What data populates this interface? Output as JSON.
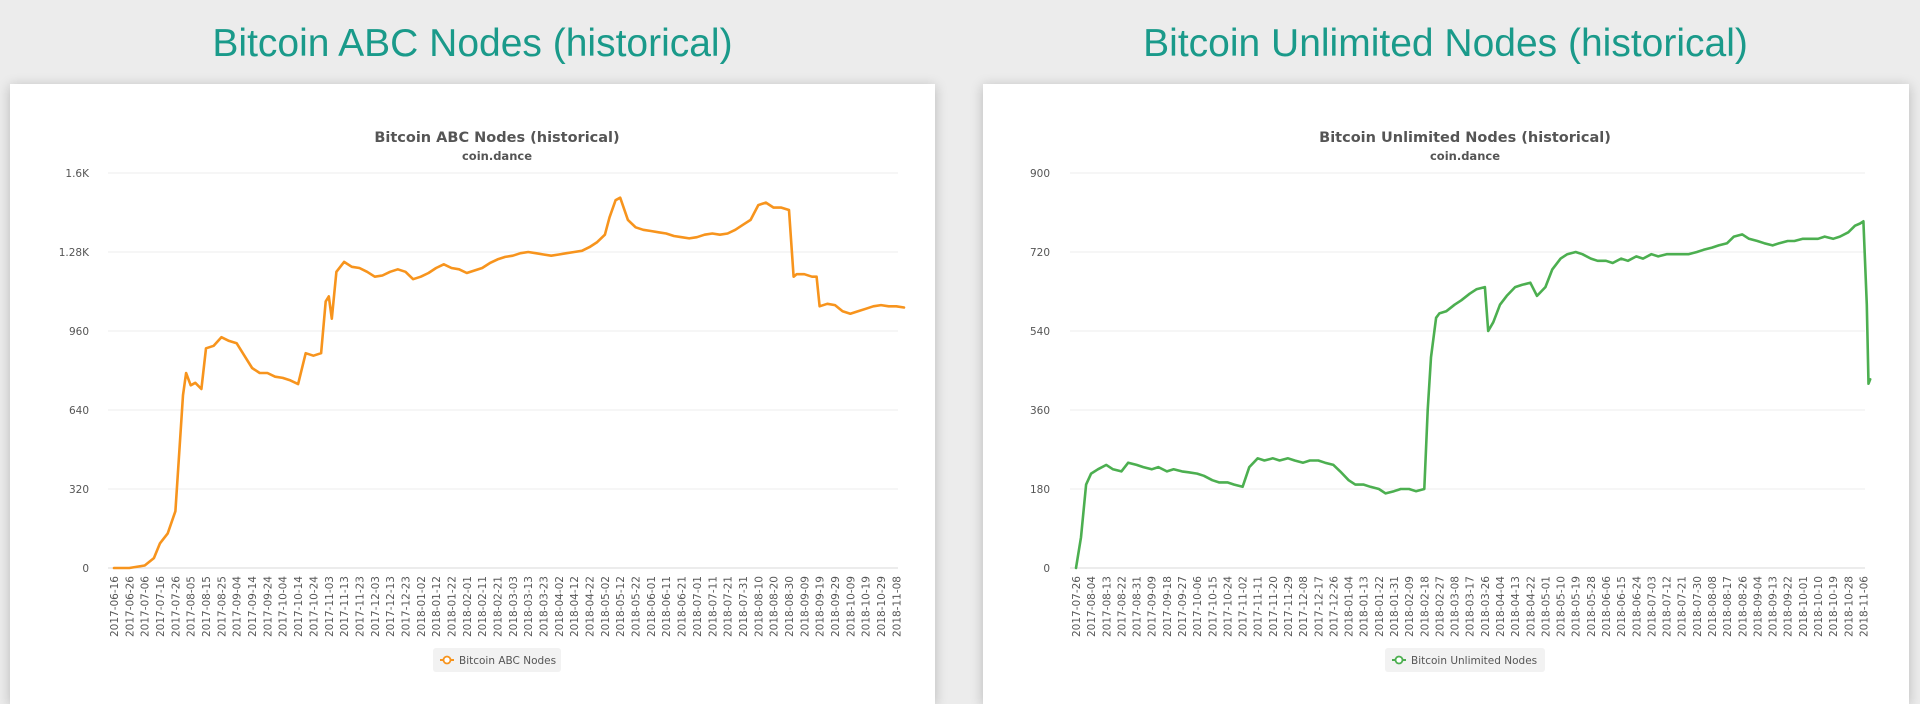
{
  "page": {
    "left_heading": "Bitcoin ABC Nodes (historical)",
    "right_heading": "Bitcoin Unlimited Nodes (historical)"
  },
  "chart_data": [
    {
      "type": "line",
      "title": "Bitcoin ABC Nodes (historical)",
      "subtitle": "coin.dance",
      "xlabel": "",
      "ylabel": "",
      "ylim": [
        0,
        1600
      ],
      "yticks": [
        0,
        320,
        640,
        960,
        1280,
        1600
      ],
      "ytick_labels": [
        "0",
        "320",
        "640",
        "960",
        "1.28K",
        "1.6K"
      ],
      "grid": true,
      "legend_position": "bottom-center",
      "color": "#f7941d",
      "x_tick_labels": [
        "2017-06-16",
        "2017-06-26",
        "2017-07-06",
        "2017-07-16",
        "2017-07-26",
        "2017-08-05",
        "2017-08-15",
        "2017-08-25",
        "2017-09-04",
        "2017-09-14",
        "2017-09-24",
        "2017-10-04",
        "2017-10-14",
        "2017-10-24",
        "2017-11-03",
        "2017-11-13",
        "2017-11-23",
        "2017-12-03",
        "2017-12-13",
        "2017-12-23",
        "2018-01-02",
        "2018-01-12",
        "2018-01-22",
        "2018-02-01",
        "2018-02-11",
        "2018-02-21",
        "2018-03-03",
        "2018-03-13",
        "2018-03-23",
        "2018-04-02",
        "2018-04-12",
        "2018-04-22",
        "2018-05-02",
        "2018-05-12",
        "2018-05-22",
        "2018-06-01",
        "2018-06-11",
        "2018-06-21",
        "2018-07-01",
        "2018-07-11",
        "2018-07-21",
        "2018-07-31",
        "2018-08-10",
        "2018-08-20",
        "2018-08-30",
        "2018-09-09",
        "2018-09-19",
        "2018-09-29",
        "2018-10-09",
        "2018-10-19",
        "2018-10-29",
        "2018-11-08"
      ],
      "series": [
        {
          "name": "Bitcoin ABC Nodes",
          "x": [
            "2017-06-16",
            "2017-06-26",
            "2017-07-06",
            "2017-07-12",
            "2017-07-16",
            "2017-07-21",
            "2017-07-26",
            "2017-07-31",
            "2017-08-02",
            "2017-08-05",
            "2017-08-08",
            "2017-08-12",
            "2017-08-15",
            "2017-08-20",
            "2017-08-25",
            "2017-08-30",
            "2017-09-04",
            "2017-09-09",
            "2017-09-14",
            "2017-09-19",
            "2017-09-24",
            "2017-09-29",
            "2017-10-04",
            "2017-10-09",
            "2017-10-14",
            "2017-10-19",
            "2017-10-24",
            "2017-10-29",
            "2017-11-01",
            "2017-11-03",
            "2017-11-05",
            "2017-11-08",
            "2017-11-13",
            "2017-11-18",
            "2017-11-23",
            "2017-11-28",
            "2017-12-03",
            "2017-12-08",
            "2017-12-13",
            "2017-12-18",
            "2017-12-23",
            "2017-12-28",
            "2018-01-02",
            "2018-01-07",
            "2018-01-12",
            "2018-01-17",
            "2018-01-22",
            "2018-01-27",
            "2018-02-01",
            "2018-02-06",
            "2018-02-11",
            "2018-02-16",
            "2018-02-21",
            "2018-02-26",
            "2018-03-03",
            "2018-03-08",
            "2018-03-13",
            "2018-03-18",
            "2018-03-23",
            "2018-03-28",
            "2018-04-02",
            "2018-04-07",
            "2018-04-12",
            "2018-04-17",
            "2018-04-22",
            "2018-04-27",
            "2018-05-02",
            "2018-05-05",
            "2018-05-09",
            "2018-05-12",
            "2018-05-17",
            "2018-05-22",
            "2018-05-27",
            "2018-06-01",
            "2018-06-06",
            "2018-06-11",
            "2018-06-16",
            "2018-06-21",
            "2018-06-26",
            "2018-07-01",
            "2018-07-06",
            "2018-07-11",
            "2018-07-16",
            "2018-07-21",
            "2018-07-26",
            "2018-07-31",
            "2018-08-05",
            "2018-08-10",
            "2018-08-15",
            "2018-08-20",
            "2018-08-25",
            "2018-08-30",
            "2018-09-02",
            "2018-09-04",
            "2018-09-09",
            "2018-09-14",
            "2018-09-17",
            "2018-09-19",
            "2018-09-24",
            "2018-09-29",
            "2018-10-04",
            "2018-10-09",
            "2018-10-14",
            "2018-10-19",
            "2018-10-24",
            "2018-10-29",
            "2018-11-03",
            "2018-11-08",
            "2018-11-13"
          ],
          "values": [
            0,
            0,
            10,
            40,
            100,
            140,
            230,
            700,
            790,
            740,
            750,
            725,
            890,
            900,
            935,
            920,
            910,
            860,
            810,
            790,
            790,
            775,
            770,
            760,
            745,
            870,
            860,
            870,
            1080,
            1100,
            1010,
            1200,
            1240,
            1220,
            1215,
            1200,
            1180,
            1185,
            1200,
            1210,
            1200,
            1170,
            1180,
            1195,
            1215,
            1230,
            1215,
            1210,
            1195,
            1205,
            1215,
            1235,
            1250,
            1260,
            1265,
            1275,
            1280,
            1275,
            1270,
            1265,
            1270,
            1275,
            1280,
            1285,
            1300,
            1320,
            1350,
            1420,
            1490,
            1500,
            1410,
            1380,
            1370,
            1365,
            1360,
            1355,
            1345,
            1340,
            1335,
            1340,
            1350,
            1355,
            1350,
            1355,
            1370,
            1390,
            1410,
            1470,
            1480,
            1460,
            1460,
            1450,
            1180,
            1190,
            1190,
            1180,
            1180,
            1060,
            1070,
            1065,
            1040,
            1030,
            1040,
            1050,
            1060,
            1065,
            1060,
            1060,
            1055
          ]
        }
      ]
    },
    {
      "type": "line",
      "title": "Bitcoin Unlimited Nodes (historical)",
      "subtitle": "coin.dance",
      "xlabel": "",
      "ylabel": "",
      "ylim": [
        0,
        900
      ],
      "yticks": [
        0,
        180,
        360,
        540,
        720,
        900
      ],
      "ytick_labels": [
        "0",
        "180",
        "360",
        "540",
        "720",
        "900"
      ],
      "grid": true,
      "legend_position": "bottom-center",
      "color": "#4caf50",
      "x_tick_labels": [
        "2017-07-26",
        "2017-08-04",
        "2017-08-13",
        "2017-08-22",
        "2017-08-31",
        "2017-09-09",
        "2017-09-18",
        "2017-09-27",
        "2017-10-06",
        "2017-10-15",
        "2017-10-24",
        "2017-11-02",
        "2017-11-11",
        "2017-11-20",
        "2017-11-29",
        "2017-12-08",
        "2017-12-17",
        "2017-12-26",
        "2018-01-04",
        "2018-01-13",
        "2018-01-22",
        "2018-01-31",
        "2018-02-09",
        "2018-02-18",
        "2018-02-27",
        "2018-03-08",
        "2018-03-17",
        "2018-03-26",
        "2018-04-04",
        "2018-04-13",
        "2018-04-22",
        "2018-05-01",
        "2018-05-10",
        "2018-05-19",
        "2018-05-28",
        "2018-06-06",
        "2018-06-15",
        "2018-06-24",
        "2018-07-03",
        "2018-07-12",
        "2018-07-21",
        "2018-07-30",
        "2018-08-08",
        "2018-08-17",
        "2018-08-26",
        "2018-09-04",
        "2018-09-13",
        "2018-09-22",
        "2018-10-01",
        "2018-10-10",
        "2018-10-19",
        "2018-10-28",
        "2018-11-06"
      ],
      "series": [
        {
          "name": "Bitcoin Unlimited Nodes",
          "x": [
            "2017-07-26",
            "2017-07-29",
            "2017-08-01",
            "2017-08-04",
            "2017-08-08",
            "2017-08-13",
            "2017-08-17",
            "2017-08-22",
            "2017-08-26",
            "2017-08-31",
            "2017-09-04",
            "2017-09-09",
            "2017-09-13",
            "2017-09-18",
            "2017-09-22",
            "2017-09-27",
            "2017-10-01",
            "2017-10-06",
            "2017-10-10",
            "2017-10-15",
            "2017-10-19",
            "2017-10-24",
            "2017-10-28",
            "2017-11-02",
            "2017-11-06",
            "2017-11-11",
            "2017-11-15",
            "2017-11-20",
            "2017-11-24",
            "2017-11-29",
            "2017-12-03",
            "2017-12-08",
            "2017-12-12",
            "2017-12-17",
            "2017-12-21",
            "2017-12-26",
            "2017-12-30",
            "2018-01-04",
            "2018-01-08",
            "2018-01-13",
            "2018-01-17",
            "2018-01-22",
            "2018-01-26",
            "2018-01-31",
            "2018-02-04",
            "2018-02-09",
            "2018-02-13",
            "2018-02-18",
            "2018-02-20",
            "2018-02-22",
            "2018-02-25",
            "2018-02-27",
            "2018-03-03",
            "2018-03-08",
            "2018-03-12",
            "2018-03-17",
            "2018-03-21",
            "2018-03-26",
            "2018-03-28",
            "2018-03-31",
            "2018-04-04",
            "2018-04-08",
            "2018-04-13",
            "2018-04-17",
            "2018-04-22",
            "2018-04-26",
            "2018-05-01",
            "2018-05-05",
            "2018-05-10",
            "2018-05-14",
            "2018-05-19",
            "2018-05-23",
            "2018-05-28",
            "2018-06-01",
            "2018-06-06",
            "2018-06-10",
            "2018-06-15",
            "2018-06-19",
            "2018-06-24",
            "2018-06-28",
            "2018-07-03",
            "2018-07-07",
            "2018-07-12",
            "2018-07-16",
            "2018-07-21",
            "2018-07-25",
            "2018-07-30",
            "2018-08-03",
            "2018-08-08",
            "2018-08-12",
            "2018-08-17",
            "2018-08-21",
            "2018-08-26",
            "2018-08-30",
            "2018-09-04",
            "2018-09-08",
            "2018-09-13",
            "2018-09-17",
            "2018-09-22",
            "2018-09-26",
            "2018-10-01",
            "2018-10-05",
            "2018-10-10",
            "2018-10-14",
            "2018-10-19",
            "2018-10-23",
            "2018-10-28",
            "2018-11-01",
            "2018-11-04",
            "2018-11-06",
            "2018-11-08",
            "2018-11-09",
            "2018-11-10"
          ],
          "values": [
            0,
            70,
            190,
            215,
            225,
            235,
            225,
            220,
            240,
            235,
            230,
            225,
            230,
            220,
            225,
            220,
            218,
            215,
            210,
            200,
            195,
            195,
            190,
            185,
            230,
            250,
            245,
            250,
            245,
            250,
            245,
            240,
            245,
            245,
            240,
            235,
            220,
            200,
            190,
            190,
            185,
            180,
            170,
            175,
            180,
            180,
            175,
            180,
            360,
            480,
            570,
            580,
            585,
            600,
            610,
            625,
            635,
            640,
            540,
            560,
            600,
            620,
            640,
            645,
            650,
            620,
            640,
            680,
            705,
            715,
            720,
            715,
            705,
            700,
            700,
            695,
            705,
            700,
            710,
            705,
            715,
            710,
            715,
            715,
            715,
            715,
            720,
            725,
            730,
            735,
            740,
            755,
            760,
            750,
            745,
            740,
            735,
            740,
            745,
            745,
            750,
            750,
            750,
            755,
            750,
            755,
            765,
            780,
            785,
            790,
            600,
            420,
            430
          ]
        }
      ]
    }
  ]
}
